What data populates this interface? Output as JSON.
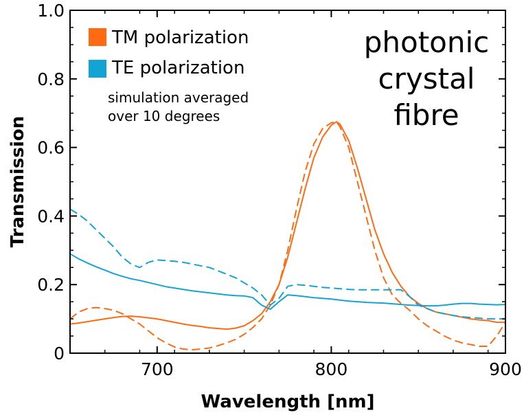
{
  "chart_data": {
    "type": "line",
    "title": "",
    "xlabel": "Wavelength [nm]",
    "ylabel": "Transmission",
    "xlim": [
      650,
      900
    ],
    "ylim": [
      0,
      1.0
    ],
    "x_ticks": [
      700,
      800,
      900
    ],
    "x_tick_labels": [
      "700",
      "800",
      "900"
    ],
    "y_ticks": [
      0,
      0.2,
      0.4,
      0.6,
      0.8,
      1.0
    ],
    "y_tick_labels": [
      "0",
      "0.2",
      "0.4",
      "0.6",
      "0.8",
      "1.0"
    ],
    "grid": false,
    "legend_position": "top-left",
    "legend": [
      {
        "label": "TM polarization",
        "color": "#ff6a13"
      },
      {
        "label": "TE polarization",
        "color": "#13a4d4"
      }
    ],
    "annotations": {
      "note_line1": "simulation averaged",
      "note_line2": "over 10 degrees",
      "big_line1": "photonic",
      "big_line2": "crystal",
      "big_line3": "fibre"
    },
    "series": [
      {
        "polarization": "TM",
        "style": "solid",
        "color": "#ff6a13",
        "x": [
          650,
          655,
          660,
          665,
          670,
          675,
          680,
          685,
          690,
          695,
          700,
          705,
          710,
          715,
          720,
          725,
          730,
          735,
          740,
          745,
          750,
          755,
          760,
          765,
          770,
          775,
          780,
          785,
          790,
          795,
          800,
          803,
          805,
          810,
          815,
          820,
          825,
          830,
          835,
          840,
          845,
          850,
          855,
          860,
          865,
          870,
          875,
          880,
          885,
          890,
          895,
          900
        ],
        "y": [
          0.085,
          0.088,
          0.092,
          0.096,
          0.1,
          0.104,
          0.107,
          0.108,
          0.106,
          0.103,
          0.1,
          0.095,
          0.09,
          0.085,
          0.081,
          0.078,
          0.074,
          0.072,
          0.07,
          0.073,
          0.08,
          0.095,
          0.115,
          0.15,
          0.2,
          0.28,
          0.38,
          0.48,
          0.57,
          0.63,
          0.665,
          0.675,
          0.668,
          0.62,
          0.54,
          0.45,
          0.36,
          0.29,
          0.235,
          0.195,
          0.165,
          0.145,
          0.13,
          0.12,
          0.115,
          0.11,
          0.105,
          0.1,
          0.097,
          0.095,
          0.09,
          0.09
        ]
      },
      {
        "polarization": "TM",
        "style": "dashed",
        "color": "#ff6a13",
        "x": [
          650,
          655,
          660,
          665,
          670,
          675,
          680,
          685,
          690,
          695,
          700,
          705,
          710,
          715,
          720,
          725,
          730,
          735,
          740,
          745,
          750,
          755,
          760,
          765,
          770,
          775,
          780,
          785,
          790,
          795,
          800,
          803,
          805,
          810,
          815,
          820,
          825,
          830,
          835,
          840,
          845,
          850,
          855,
          860,
          865,
          870,
          875,
          880,
          885,
          890,
          895,
          900
        ],
        "y": [
          0.1,
          0.12,
          0.13,
          0.133,
          0.13,
          0.125,
          0.115,
          0.1,
          0.085,
          0.065,
          0.045,
          0.03,
          0.018,
          0.012,
          0.01,
          0.012,
          0.015,
          0.022,
          0.03,
          0.04,
          0.055,
          0.075,
          0.1,
          0.14,
          0.2,
          0.3,
          0.42,
          0.53,
          0.61,
          0.655,
          0.672,
          0.675,
          0.66,
          0.6,
          0.5,
          0.4,
          0.3,
          0.22,
          0.17,
          0.145,
          0.125,
          0.1,
          0.08,
          0.065,
          0.05,
          0.038,
          0.03,
          0.025,
          0.02,
          0.02,
          0.05,
          0.09
        ]
      },
      {
        "polarization": "TE",
        "style": "solid",
        "color": "#13a4d4",
        "x": [
          650,
          655,
          660,
          665,
          670,
          675,
          680,
          685,
          690,
          695,
          700,
          705,
          710,
          715,
          720,
          725,
          730,
          735,
          740,
          745,
          750,
          755,
          760,
          765,
          770,
          775,
          780,
          785,
          790,
          795,
          800,
          805,
          810,
          815,
          820,
          825,
          830,
          835,
          840,
          845,
          850,
          855,
          860,
          865,
          870,
          875,
          880,
          885,
          890,
          895,
          900
        ],
        "y": [
          0.29,
          0.275,
          0.263,
          0.252,
          0.242,
          0.232,
          0.224,
          0.217,
          0.212,
          0.206,
          0.2,
          0.194,
          0.19,
          0.186,
          0.182,
          0.179,
          0.176,
          0.173,
          0.17,
          0.168,
          0.167,
          0.162,
          0.14,
          0.128,
          0.15,
          0.17,
          0.168,
          0.165,
          0.162,
          0.16,
          0.158,
          0.155,
          0.152,
          0.15,
          0.148,
          0.147,
          0.146,
          0.144,
          0.142,
          0.14,
          0.139,
          0.138,
          0.138,
          0.14,
          0.143,
          0.145,
          0.145,
          0.143,
          0.142,
          0.141,
          0.142
        ]
      },
      {
        "polarization": "TE",
        "style": "dashed",
        "color": "#13a4d4",
        "x": [
          650,
          655,
          660,
          665,
          670,
          675,
          680,
          685,
          690,
          695,
          700,
          705,
          710,
          715,
          720,
          725,
          730,
          735,
          740,
          745,
          750,
          755,
          760,
          765,
          770,
          775,
          780,
          785,
          790,
          795,
          800,
          805,
          810,
          815,
          820,
          825,
          830,
          835,
          840,
          845,
          850,
          855,
          860,
          865,
          870,
          875,
          880,
          885,
          890,
          895,
          900
        ],
        "y": [
          0.42,
          0.405,
          0.385,
          0.36,
          0.335,
          0.31,
          0.28,
          0.26,
          0.25,
          0.265,
          0.272,
          0.27,
          0.268,
          0.265,
          0.26,
          0.255,
          0.25,
          0.24,
          0.23,
          0.22,
          0.205,
          0.19,
          0.17,
          0.14,
          0.16,
          0.195,
          0.2,
          0.198,
          0.195,
          0.192,
          0.19,
          0.188,
          0.186,
          0.185,
          0.185,
          0.185,
          0.185,
          0.185,
          0.185,
          0.165,
          0.14,
          0.13,
          0.12,
          0.115,
          0.11,
          0.106,
          0.104,
          0.102,
          0.1,
          0.1,
          0.1
        ]
      }
    ]
  }
}
